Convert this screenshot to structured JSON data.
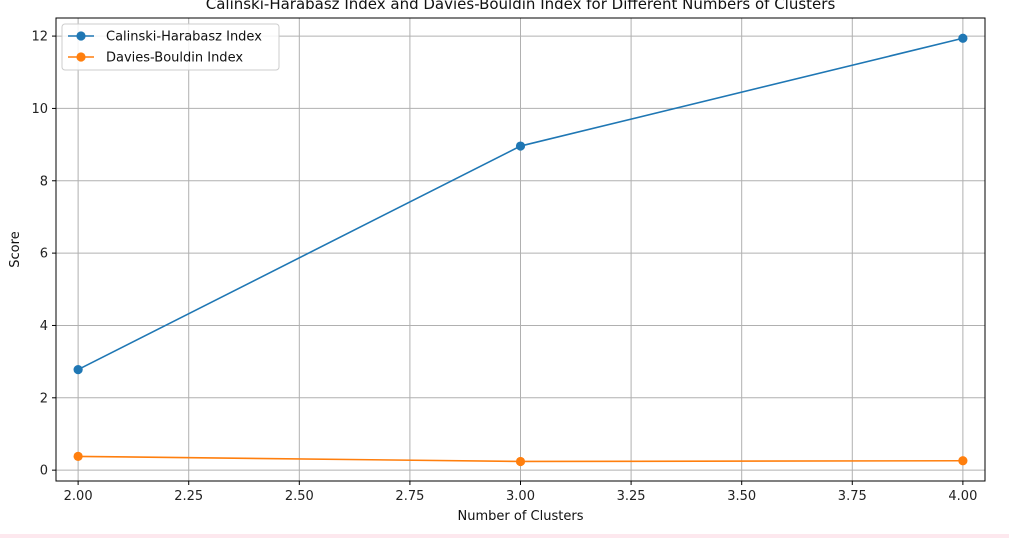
{
  "chart_data": {
    "type": "line",
    "title": "Calinski-Harabasz Index and Davies-Bouldin Index for Different Numbers of Clusters",
    "xlabel": "Number of Clusters",
    "ylabel": "Score",
    "xlim": [
      1.95,
      4.05
    ],
    "ylim": [
      -0.3,
      12.5
    ],
    "xticks": [
      "2.00",
      "2.25",
      "2.50",
      "2.75",
      "3.00",
      "3.25",
      "3.50",
      "3.75",
      "4.00"
    ],
    "yticks": [
      "0",
      "2",
      "4",
      "6",
      "8",
      "10",
      "12"
    ],
    "grid": true,
    "legend_position": "top-left",
    "x": [
      2,
      3,
      4
    ],
    "series": [
      {
        "name": "Calinski-Harabasz Index",
        "values": [
          2.78,
          8.96,
          11.94
        ],
        "color": "#1f77b4",
        "marker": "circle"
      },
      {
        "name": "Davies-Bouldin Index",
        "values": [
          0.38,
          0.24,
          0.26
        ],
        "color": "#ff7f0e",
        "marker": "circle"
      }
    ]
  }
}
